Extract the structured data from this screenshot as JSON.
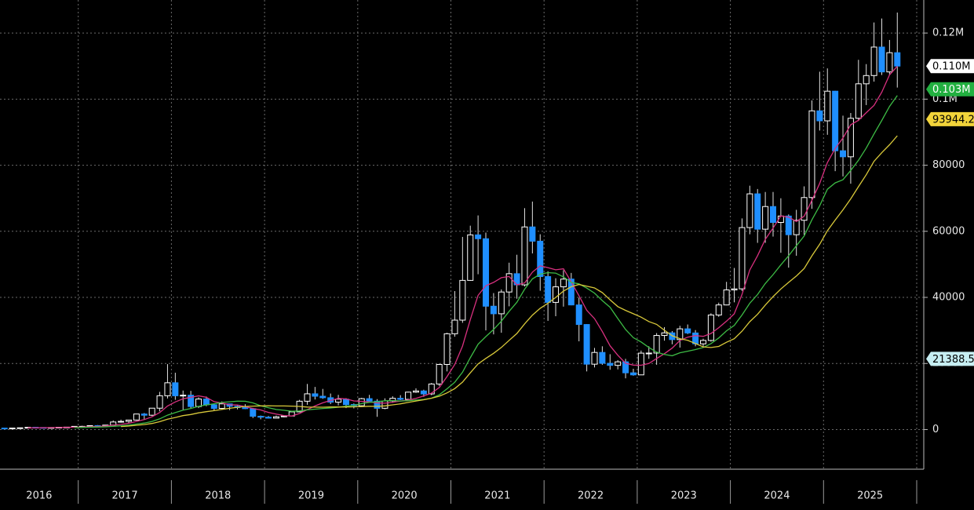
{
  "chart_data": {
    "type": "candlestick",
    "year_labels": [
      "2016",
      "2017",
      "2018",
      "2019",
      "2020",
      "2021",
      "2022",
      "2023",
      "2024",
      "2025"
    ],
    "open": [
      430,
      368,
      437,
      416,
      448,
      531,
      673,
      624,
      575,
      609,
      700,
      742,
      963,
      970,
      1190,
      1080,
      1348,
      2286,
      2480,
      2875,
      4703,
      4338,
      6468,
      10233,
      14156,
      10221,
      10397,
      6973,
      9240,
      7494,
      6404,
      7780,
      7037,
      6625,
      6318,
      4017,
      3742,
      3457,
      3854,
      4105,
      5350,
      8574,
      10817,
      10085,
      9630,
      8293,
      9199,
      7569,
      7193,
      9350,
      8599,
      6438,
      8658,
      9461,
      9137,
      11323,
      11680,
      10784,
      13781,
      19700,
      28990,
      33114,
      45137,
      58918,
      57750,
      37332,
      35040,
      41626,
      47166,
      43790,
      61318,
      57005,
      46306,
      38483,
      43193,
      45538,
      37714,
      31792,
      19785,
      23336,
      20050,
      19423,
      20495,
      17168,
      16548,
      23125,
      23147,
      28478,
      29268,
      27219,
      30477,
      29230,
      25940,
      26967,
      34667,
      37712,
      42265,
      42580,
      61130,
      71333,
      60636,
      67491,
      62678,
      64619,
      58969,
      63329,
      70215,
      96449,
      93429,
      102405,
      84373,
      82548,
      94207,
      104638,
      107135,
      115758,
      108236,
      114050
    ],
    "high": [
      460,
      440,
      440,
      470,
      550,
      780,
      700,
      630,
      630,
      740,
      760,
      980,
      1150,
      1210,
      1350,
      1350,
      2760,
      3000,
      2920,
      4760,
      5000,
      6470,
      11400,
      19800,
      17200,
      11800,
      11700,
      9750,
      10000,
      7780,
      8500,
      7780,
      7410,
      7680,
      6550,
      4240,
      4100,
      4210,
      4300,
      5620,
      9000,
      13800,
      12900,
      12300,
      10900,
      10500,
      9500,
      7900,
      9600,
      10500,
      9200,
      9450,
      10070,
      10400,
      11450,
      12470,
      12050,
      14100,
      19900,
      29300,
      41900,
      58300,
      61700,
      64800,
      59600,
      41300,
      42400,
      50500,
      52900,
      67000,
      69000,
      59100,
      47900,
      45800,
      48200,
      47400,
      39900,
      31900,
      24700,
      25200,
      22800,
      21000,
      21400,
      18400,
      23900,
      25200,
      29200,
      31000,
      29800,
      31400,
      31800,
      30100,
      27500,
      35200,
      38400,
      44700,
      48900,
      63900,
      73800,
      72800,
      71900,
      71900,
      70000,
      65100,
      66500,
      73600,
      99600,
      108300,
      109300,
      102500,
      95000,
      95800,
      111900,
      110600,
      123200,
      124400,
      117900,
      126200
    ],
    "low": [
      350,
      365,
      410,
      415,
      440,
      530,
      600,
      470,
      570,
      600,
      690,
      740,
      750,
      920,
      890,
      1060,
      1340,
      2080,
      1840,
      2700,
      2950,
      4100,
      5500,
      9400,
      9000,
      6000,
      6450,
      6500,
      7050,
      5760,
      6070,
      5880,
      6100,
      6180,
      3500,
      3100,
      3350,
      3390,
      3700,
      4100,
      5300,
      7500,
      9100,
      9300,
      7700,
      7300,
      6500,
      6400,
      6850,
      8450,
      3850,
      6150,
      8100,
      8900,
      8950,
      11100,
      9900,
      10400,
      13200,
      17600,
      28100,
      32300,
      45000,
      47000,
      30000,
      28800,
      29300,
      37300,
      39600,
      43300,
      53300,
      42000,
      32900,
      34300,
      37200,
      37600,
      26700,
      17600,
      18800,
      19600,
      18100,
      18200,
      15500,
      16300,
      16500,
      21400,
      19600,
      26900,
      25800,
      24800,
      28900,
      25200,
      24900,
      26600,
      34100,
      37600,
      38500,
      41900,
      59100,
      56500,
      56500,
      58400,
      53500,
      49000,
      52600,
      58900,
      66800,
      90500,
      89200,
      78200,
      76600,
      74400,
      93400,
      98200,
      105300,
      107300,
      107300,
      103500
    ],
    "close": [
      368,
      437,
      416,
      448,
      531,
      673,
      624,
      575,
      609,
      700,
      742,
      963,
      970,
      1190,
      1080,
      1348,
      2286,
      2480,
      2875,
      4703,
      4338,
      6468,
      10233,
      14156,
      10221,
      10397,
      6973,
      9240,
      7494,
      6404,
      7780,
      7037,
      6625,
      6318,
      4017,
      3742,
      3457,
      3854,
      4105,
      5350,
      8574,
      10817,
      10085,
      9630,
      8293,
      9199,
      7569,
      7193,
      9350,
      8599,
      6438,
      8658,
      9461,
      9137,
      11323,
      11680,
      10784,
      13781,
      19700,
      28990,
      33114,
      45137,
      58918,
      57750,
      37332,
      35040,
      41626,
      47166,
      43790,
      61318,
      57005,
      46306,
      38483,
      43193,
      45538,
      37714,
      31792,
      19785,
      23336,
      20050,
      19423,
      20495,
      17168,
      16548,
      23125,
      23147,
      28478,
      29268,
      27219,
      30477,
      29230,
      25940,
      26967,
      34667,
      37712,
      42265,
      42580,
      61130,
      71333,
      60636,
      67491,
      62678,
      64619,
      58969,
      63329,
      70215,
      96449,
      93429,
      102405,
      84373,
      82548,
      94207,
      104638,
      107135,
      115758,
      108236,
      114050,
      110000
    ],
    "up_color": "#ffffff",
    "down_color": "#1f8fff",
    "moving_averages": [
      {
        "color": "#d8307f",
        "values": [
          null,
          null,
          null,
          null,
          null,
          480,
          520,
          545,
          580,
          620,
          650,
          700,
          760,
          860,
          940,
          1050,
          1310,
          1560,
          1880,
          2460,
          3010,
          3860,
          5180,
          7130,
          8350,
          9300,
          9740,
          10200,
          9750,
          8450,
          8050,
          7490,
          7430,
          6940,
          6370,
          5920,
          5200,
          4670,
          4250,
          4090,
          4850,
          6030,
          7130,
          8100,
          8790,
          9430,
          9270,
          8660,
          8540,
          8370,
          8060,
          7970,
          8280,
          8610,
          8940,
          9450,
          10170,
          11030,
          12730,
          16040,
          19670,
          25250,
          33270,
          40600,
          43540,
          44550,
          45970,
          46310,
          43790,
          44380,
          47660,
          49540,
          49010,
          48350,
          48640,
          44710,
          40500,
          36080,
          33560,
          29700,
          25350,
          22480,
          20050,
          19510,
          19470,
          19990,
          21500,
          22960,
          24630,
          26960,
          27970,
          28440,
          28190,
          29090,
          30830,
          32800,
          35020,
          40890,
          48280,
          52610,
          57570,
          60980,
          64650,
          64290,
          62960,
          64550,
          69380,
          74500,
          80800,
          85040,
          88240,
          92240,
          93600,
          95890,
          98110,
          102090,
          107340,
          109970
        ]
      },
      {
        "color": "#3dbb45",
        "values": [
          null,
          null,
          null,
          null,
          null,
          null,
          null,
          null,
          null,
          null,
          null,
          590,
          640,
          700,
          760,
          830,
          980,
          1130,
          1320,
          1660,
          1970,
          2450,
          3250,
          4350,
          5120,
          5880,
          6370,
          7030,
          7470,
          7790,
          8200,
          8400,
          8590,
          8570,
          8060,
          7190,
          6620,
          6080,
          5840,
          5520,
          5610,
          5970,
          6170,
          6380,
          6520,
          6760,
          7060,
          7340,
          7840,
          8230,
          8430,
          8700,
          8780,
          8640,
          8740,
          8910,
          9120,
          9500,
          10510,
          12330,
          14310,
          17350,
          21720,
          25810,
          28140,
          30300,
          32820,
          35780,
          38530,
          42490,
          45600,
          47040,
          47490,
          47330,
          46210,
          44540,
          44080,
          42810,
          41290,
          39030,
          37000,
          33590,
          30270,
          27790,
          26520,
          24850,
          23420,
          22720,
          22340,
          23230,
          23720,
          24210,
          24840,
          26020,
          27730,
          29880,
          31500,
          34660,
          38230,
          40850,
          44200,
          46890,
          49840,
          52590,
          55620,
          58580,
          63480,
          67740,
          72730,
          74660,
          75600,
          78390,
          81490,
          85200,
          89460,
          93560,
          97790,
          101100
        ]
      },
      {
        "color": "#d9c93a",
        "values": [
          null,
          null,
          null,
          null,
          null,
          null,
          null,
          null,
          null,
          null,
          null,
          null,
          null,
          null,
          null,
          null,
          null,
          910,
          1050,
          1290,
          1510,
          1840,
          2380,
          3130,
          3660,
          4210,
          4560,
          5040,
          5410,
          5710,
          6090,
          6420,
          6730,
          7000,
          7100,
          7170,
          7200,
          7150,
          7140,
          7080,
          6990,
          6800,
          6790,
          6750,
          6820,
          6820,
          6830,
          6870,
          6960,
          7040,
          7030,
          7160,
          7470,
          7770,
          8200,
          8640,
          9010,
          9480,
          10090,
          11100,
          12380,
          14360,
          17170,
          19870,
          21520,
          23070,
          24860,
          27000,
          29080,
          32000,
          34640,
          36710,
          38220,
          39970,
          41900,
          43230,
          43900,
          43390,
          42850,
          41450,
          39260,
          37190,
          36070,
          35040,
          34010,
          32680,
          31830,
          30050,
          28390,
          27510,
          27000,
          26040,
          25010,
          24840,
          25170,
          26420,
          27490,
          29770,
          32650,
          34880,
          37680,
          40240,
          42550,
          44540,
          46470,
          48750,
          52600,
          56090,
          60160,
          63400,
          66490,
          69800,
          73520,
          77120,
          81190,
          83800,
          86180,
          88920
        ]
      }
    ],
    "ylim": [
      -12000,
      130000
    ],
    "yticks": [
      0,
      20000,
      40000,
      60000,
      80000,
      {
        "value": 100000,
        "label": "0.1M"
      },
      {
        "value": 120000,
        "label": "0.12M"
      }
    ],
    "grid": true,
    "annotations": [
      {
        "value": 110000,
        "label": "0.110M",
        "color": "#ffffff",
        "text_color": "#000000"
      },
      {
        "value": 103000,
        "label": "0.103M",
        "color": "#22b040",
        "text_color": "#ffffff"
      },
      {
        "value": 93944.2,
        "label": "93944.2",
        "color": "#f2d43a",
        "text_color": "#000000"
      },
      {
        "value": 21388.51,
        "label": "21388.51",
        "color": "#c6eef2",
        "text_color": "#000000"
      }
    ]
  }
}
